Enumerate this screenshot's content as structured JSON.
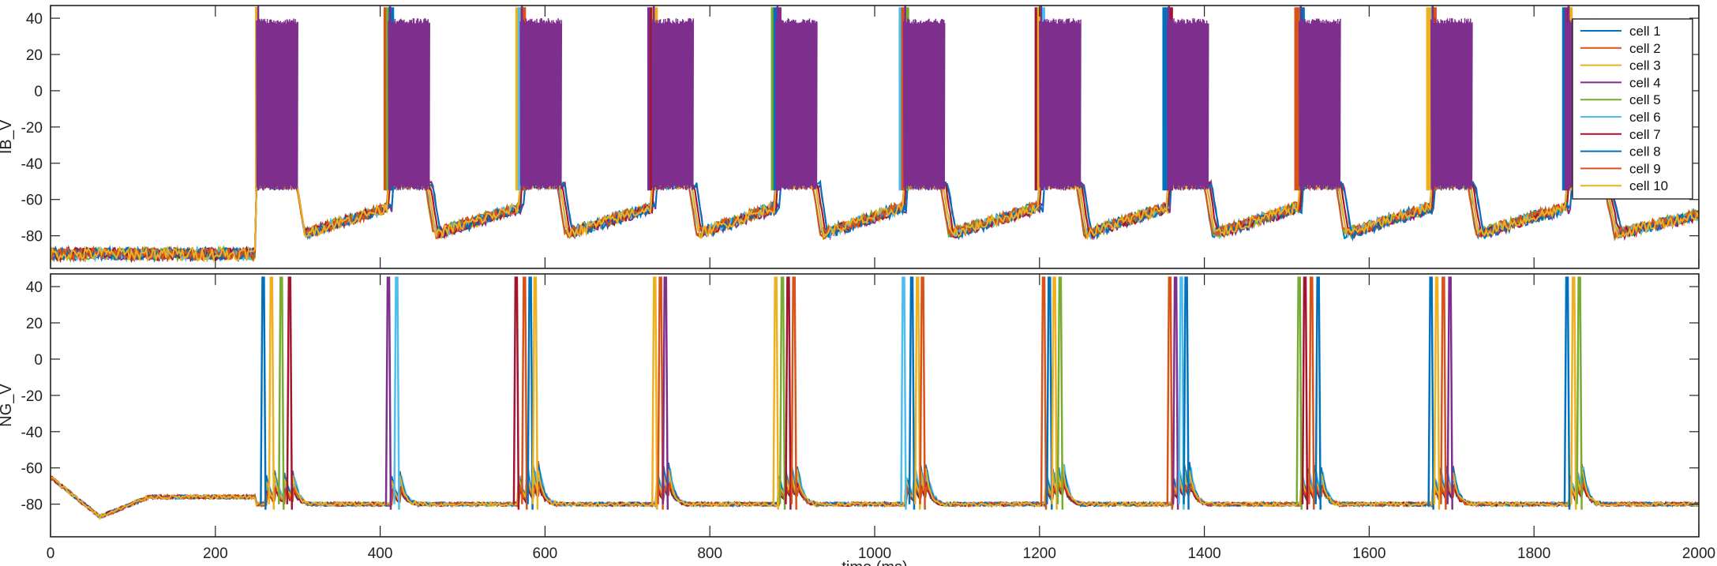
{
  "chart_data": [
    {
      "type": "line",
      "panel": "top",
      "title": "",
      "xlabel": "",
      "ylabel": "IB_V",
      "xlim": [
        0,
        2000
      ],
      "ylim": [
        -98,
        47
      ],
      "yticks": [
        -80,
        -60,
        -40,
        -20,
        0,
        20,
        40
      ],
      "xticks": [
        0,
        200,
        400,
        600,
        800,
        1000,
        1200,
        1400,
        1600,
        1800,
        2000
      ],
      "show_xtick_labels": false,
      "grid": false,
      "legend": {
        "placement": "top-right",
        "entries": [
          "cell 1",
          "cell 2",
          "cell 3",
          "cell 4",
          "cell 5",
          "cell 6",
          "cell 7",
          "cell 8",
          "cell 9",
          "cell 10"
        ]
      },
      "baseline_before_onset": -90,
      "onset_time": 250,
      "burst_times": [
        250,
        410,
        570,
        730,
        880,
        1035,
        1200,
        1355,
        1515,
        1675,
        1840
      ],
      "burst_duration": 50,
      "burst_plateau_range": [
        -55,
        40
      ],
      "interburst_trough": -80,
      "interburst_end": -65
    },
    {
      "type": "line",
      "panel": "bottom",
      "title": "",
      "xlabel": "time (ms)",
      "ylabel": "NG_V",
      "xlim": [
        0,
        2000
      ],
      "ylim": [
        -98,
        47
      ],
      "yticks": [
        -80,
        -60,
        -40,
        -20,
        0,
        20,
        40
      ],
      "xticks": [
        0,
        200,
        400,
        600,
        800,
        1000,
        1200,
        1400,
        1600,
        1800,
        2000
      ],
      "show_xtick_labels": true,
      "grid": false,
      "rest_potential": -80,
      "spike_peak": 45,
      "spike_groups": [
        [
          258,
          268,
          280,
          290
        ],
        [
          410,
          420
        ],
        [
          565,
          575,
          582,
          588
        ],
        [
          733,
          740,
          746
        ],
        [
          880,
          888,
          895,
          902
        ],
        [
          1035,
          1045,
          1052,
          1058
        ],
        [
          1205,
          1212,
          1218,
          1225
        ],
        [
          1358,
          1365,
          1372,
          1378
        ],
        [
          1515,
          1522,
          1530,
          1538
        ],
        [
          1675,
          1682,
          1690,
          1698
        ],
        [
          1840,
          1848,
          1855
        ]
      ]
    }
  ],
  "series_colors": [
    "#0072BD",
    "#D95319",
    "#EDB120",
    "#7E2F8E",
    "#77AC30",
    "#4DBEEE",
    "#A2142F",
    "#0072BD",
    "#D95319",
    "#EDB120"
  ]
}
